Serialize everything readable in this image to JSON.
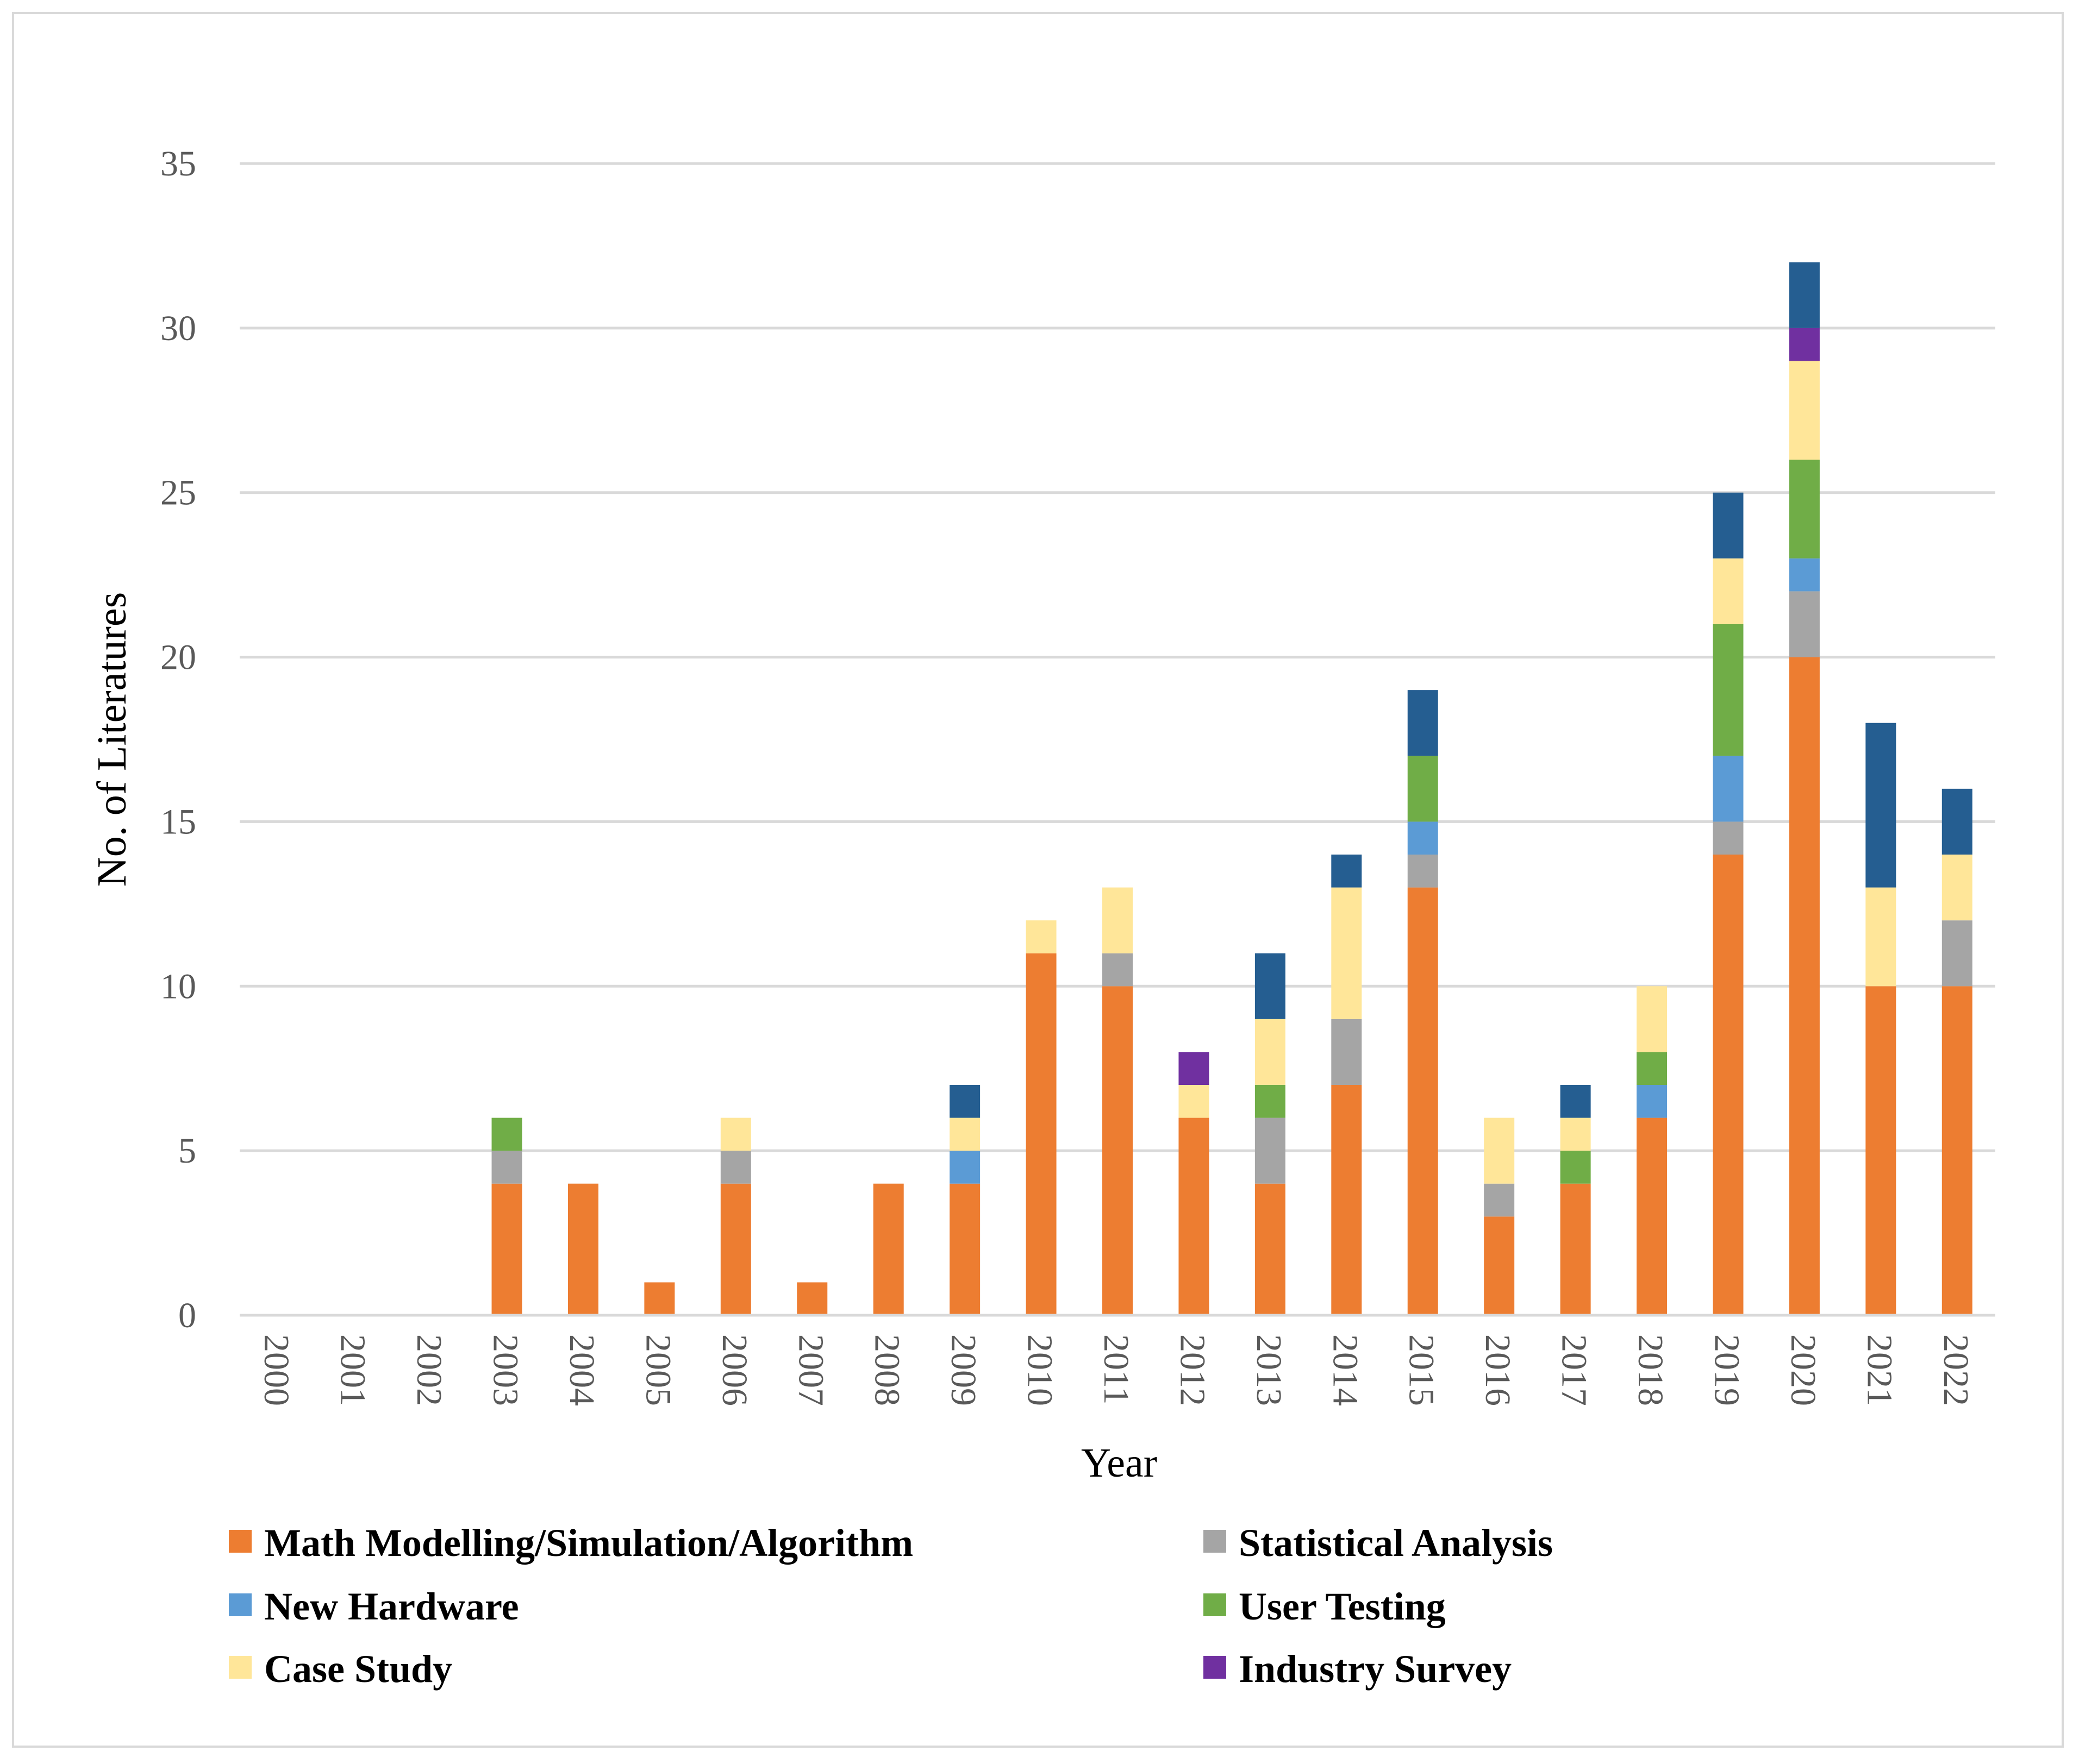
{
  "chart_data": {
    "type": "bar",
    "stacked": true,
    "title": "",
    "xlabel": "Year",
    "ylabel": "No. of Literatures",
    "ylim": [
      0,
      35
    ],
    "yticks": [
      0,
      5,
      10,
      15,
      20,
      25,
      30,
      35
    ],
    "grid": true,
    "legend_position": "bottom",
    "categories": [
      "2000",
      "2001",
      "2002",
      "2003",
      "2004",
      "2005",
      "2006",
      "2007",
      "2008",
      "2009",
      "2010",
      "2011",
      "2012",
      "2013",
      "2014",
      "2015",
      "2016",
      "2017",
      "2018",
      "2019",
      "2020",
      "2021",
      "2022"
    ],
    "series": [
      {
        "name": "Math Modelling/Simulation/Algorithm",
        "color": "#ed7d31",
        "values": [
          0,
          0,
          0,
          4,
          4,
          1,
          4,
          1,
          4,
          4,
          11,
          10,
          6,
          4,
          7,
          13,
          3,
          4,
          6,
          14,
          20,
          10,
          10
        ]
      },
      {
        "name": "Statistical Analysis",
        "color": "#a5a5a5",
        "values": [
          0,
          0,
          0,
          1,
          0,
          0,
          1,
          0,
          0,
          0,
          0,
          1,
          0,
          2,
          2,
          1,
          1,
          0,
          0,
          1,
          2,
          0,
          2
        ]
      },
      {
        "name": "New Hardware",
        "color": "#5b9bd5",
        "values": [
          0,
          0,
          0,
          0,
          0,
          0,
          0,
          0,
          0,
          1,
          0,
          0,
          0,
          0,
          0,
          1,
          0,
          0,
          1,
          2,
          1,
          0,
          0
        ]
      },
      {
        "name": "User Testing",
        "color": "#70ad47",
        "values": [
          0,
          0,
          0,
          1,
          0,
          0,
          0,
          0,
          0,
          0,
          0,
          0,
          0,
          1,
          0,
          2,
          0,
          1,
          1,
          4,
          3,
          0,
          0
        ]
      },
      {
        "name": "Case Study",
        "color": "#ffe699",
        "values": [
          0,
          0,
          0,
          0,
          0,
          0,
          1,
          0,
          0,
          1,
          1,
          2,
          1,
          2,
          4,
          0,
          2,
          1,
          2,
          2,
          3,
          3,
          2
        ]
      },
      {
        "name": "Industry Survey",
        "color": "#7030a0",
        "values": [
          0,
          0,
          0,
          0,
          0,
          0,
          0,
          0,
          0,
          0,
          0,
          0,
          1,
          0,
          0,
          0,
          0,
          0,
          0,
          0,
          1,
          0,
          0
        ]
      },
      {
        "name": "",
        "color": "#255e91",
        "values": [
          0,
          0,
          0,
          0,
          0,
          0,
          0,
          0,
          0,
          1,
          0,
          0,
          0,
          2,
          1,
          2,
          0,
          1,
          0,
          2,
          2,
          5,
          2
        ]
      }
    ]
  }
}
